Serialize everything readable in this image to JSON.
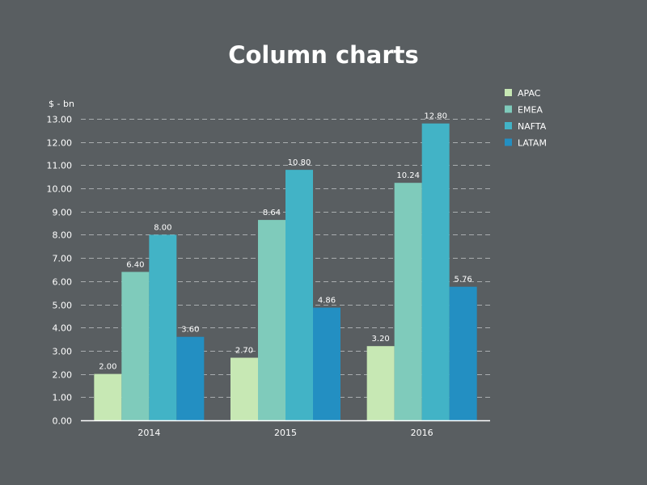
{
  "chart_data": {
    "type": "bar",
    "title": "Column charts",
    "ylabel": "$ - bn",
    "xlabel": "",
    "categories": [
      "2014",
      "2015",
      "2016"
    ],
    "series": [
      {
        "name": "APAC",
        "color": "#c7e8b4",
        "values": [
          2.0,
          2.7,
          3.2
        ],
        "labels": [
          "2.00",
          "2.70",
          "3.20"
        ]
      },
      {
        "name": "EMEA",
        "color": "#7fcbbb",
        "values": [
          6.4,
          8.64,
          10.24
        ],
        "labels": [
          "6.40",
          "8.64",
          "10.24"
        ]
      },
      {
        "name": "NAFTA",
        "color": "#42b3c6",
        "values": [
          8.0,
          10.8,
          12.8
        ],
        "labels": [
          "8.00",
          "10.80",
          "12.80"
        ]
      },
      {
        "name": "LATAM",
        "color": "#238fc2",
        "values": [
          3.6,
          4.86,
          5.76
        ],
        "labels": [
          "3.60",
          "4.86",
          "5.76"
        ]
      }
    ],
    "ylim": [
      0,
      13
    ],
    "yticks": [
      0,
      1,
      2,
      3,
      4,
      5,
      6,
      7,
      8,
      9,
      10,
      11,
      12,
      13
    ],
    "ytick_labels": [
      "0.00",
      "1.00",
      "2.00",
      "3.00",
      "4.00",
      "5.00",
      "6.00",
      "7.00",
      "8.00",
      "9.00",
      "10.00",
      "11.00",
      "12.00",
      "13.00"
    ],
    "grid": true,
    "legend_position": "top-right"
  }
}
